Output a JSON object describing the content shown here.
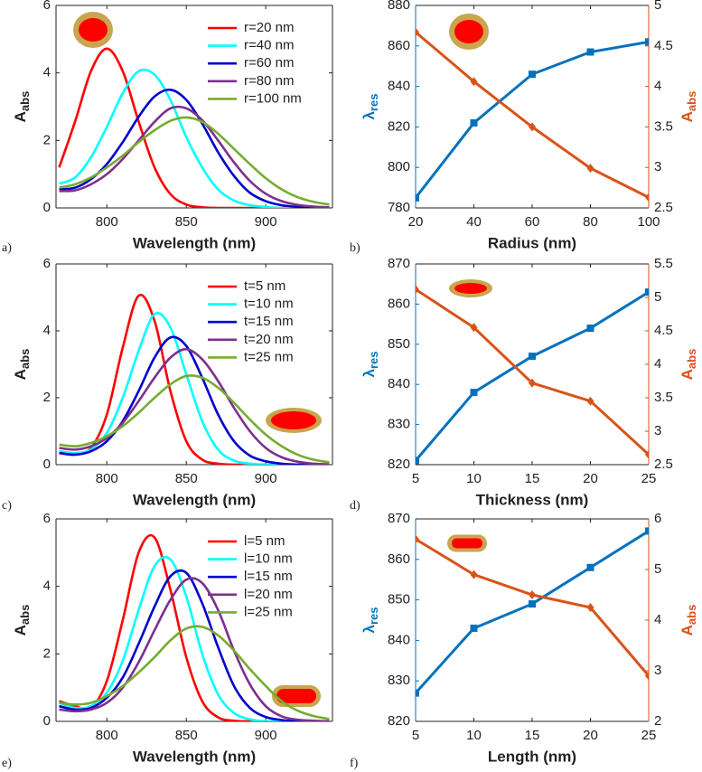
{
  "chart_data": [
    {
      "type": "line",
      "panel_label": "a)",
      "xlabel": "Wavelength (nm)",
      "ylabel": "A",
      "ylabel_sub": "abs",
      "x": [
        770,
        780,
        790,
        800,
        810,
        820,
        830,
        840,
        850,
        860,
        870,
        880,
        890,
        900,
        910,
        920,
        930,
        940
      ],
      "xlim": [
        768,
        942
      ],
      "xticks": [
        800,
        850,
        900
      ],
      "ylim": [
        0,
        6
      ],
      "yticks": [
        0,
        2,
        4,
        6
      ],
      "legend": "upper right",
      "inset": "sphere",
      "series": [
        {
          "name": "r=20 nm",
          "color": "#ff0000",
          "values": [
            1.2,
            2.56,
            4.05,
            4.72,
            4.05,
            2.56,
            1.2,
            0.41,
            0.1,
            0.02,
            0,
            0,
            0,
            0,
            0,
            0,
            0,
            0
          ]
        },
        {
          "name": "r=40 nm",
          "color": "#00ffff",
          "values": [
            0.72,
            0.9,
            1.5,
            2.4,
            3.4,
            4.05,
            3.95,
            3.2,
            2.1,
            1.2,
            0.55,
            0.22,
            0.08,
            0.03,
            0,
            0,
            0,
            0
          ]
        },
        {
          "name": "r=60 nm",
          "color": "#0000cc",
          "values": [
            0.55,
            0.6,
            0.85,
            1.3,
            1.95,
            2.7,
            3.3,
            3.5,
            3.2,
            2.5,
            1.65,
            0.95,
            0.45,
            0.2,
            0.08,
            0.03,
            0.01,
            0
          ]
        },
        {
          "name": "r=80 nm",
          "color": "#7e2f8e",
          "values": [
            0.5,
            0.52,
            0.7,
            1.0,
            1.45,
            2.0,
            2.55,
            2.95,
            2.95,
            2.6,
            2.0,
            1.35,
            0.8,
            0.42,
            0.2,
            0.09,
            0.04,
            0.02
          ]
        },
        {
          "name": "r=100 nm",
          "color": "#77ac30",
          "values": [
            0.6,
            0.7,
            0.9,
            1.2,
            1.55,
            1.95,
            2.3,
            2.58,
            2.68,
            2.55,
            2.2,
            1.75,
            1.3,
            0.88,
            0.55,
            0.32,
            0.18,
            0.1
          ]
        }
      ]
    },
    {
      "type": "line",
      "panel_label": "b)",
      "xlabel": "Radius (nm)",
      "ylabel": "λ",
      "ylabel_sub": "res",
      "y2label": "A",
      "y2label_sub": "abs",
      "x": [
        20,
        40,
        60,
        80,
        100
      ],
      "xlim": [
        20,
        100
      ],
      "xticks": [
        20,
        40,
        60,
        80,
        100
      ],
      "ylim": [
        780,
        880
      ],
      "yticks": [
        780,
        800,
        820,
        840,
        860,
        880
      ],
      "ycolor": "#0072bd",
      "y2lim": [
        2.5,
        5
      ],
      "y2ticks": [
        2.5,
        3,
        3.5,
        4,
        4.5,
        5
      ],
      "y2color": "#d95319",
      "inset": "sphere",
      "series": [
        {
          "color": "#0072bd",
          "marker": "square",
          "values": [
            785,
            822,
            846,
            857,
            862
          ]
        },
        {
          "color": "#d95319",
          "marker": "diamond",
          "axis": "y2",
          "values": [
            4.67,
            4.06,
            3.5,
            2.99,
            2.63
          ]
        }
      ]
    },
    {
      "type": "line",
      "panel_label": "c)",
      "xlabel": "Wavelength (nm)",
      "ylabel": "A",
      "ylabel_sub": "abs",
      "x": [
        770,
        780,
        790,
        800,
        810,
        820,
        830,
        840,
        850,
        860,
        870,
        880,
        890,
        900,
        910,
        920,
        930,
        940
      ],
      "xlim": [
        768,
        942
      ],
      "xticks": [
        800,
        850,
        900
      ],
      "ylim": [
        0,
        6
      ],
      "yticks": [
        0,
        2,
        4,
        6
      ],
      "legend": "upper right",
      "inset": "disk",
      "series": [
        {
          "name": "t=5 nm",
          "color": "#ff0000",
          "values": [
            0.35,
            0.3,
            0.5,
            1.5,
            3.5,
            5.05,
            4.3,
            2.2,
            0.7,
            0.15,
            0.03,
            0,
            0,
            0,
            0,
            0,
            0,
            0
          ]
        },
        {
          "name": "t=10 nm",
          "color": "#00ffff",
          "values": [
            0.4,
            0.35,
            0.45,
            0.95,
            2.0,
            3.4,
            4.5,
            4.1,
            2.7,
            1.3,
            0.45,
            0.12,
            0.03,
            0,
            0,
            0,
            0,
            0
          ]
        },
        {
          "name": "t=15 nm",
          "color": "#0000cc",
          "values": [
            0.35,
            0.3,
            0.4,
            0.7,
            1.3,
            2.2,
            3.2,
            3.8,
            3.55,
            2.6,
            1.5,
            0.7,
            0.27,
            0.1,
            0.03,
            0,
            0,
            0
          ]
        },
        {
          "name": "t=20 nm",
          "color": "#7e2f8e",
          "values": [
            0.5,
            0.45,
            0.55,
            0.8,
            1.25,
            1.9,
            2.6,
            3.2,
            3.45,
            3.15,
            2.5,
            1.7,
            1.0,
            0.5,
            0.22,
            0.09,
            0.03,
            0.01
          ]
        },
        {
          "name": "t=25 nm",
          "color": "#77ac30",
          "values": [
            0.6,
            0.55,
            0.65,
            0.85,
            1.15,
            1.55,
            2.0,
            2.4,
            2.65,
            2.6,
            2.3,
            1.85,
            1.35,
            0.9,
            0.55,
            0.3,
            0.15,
            0.07
          ]
        }
      ]
    },
    {
      "type": "line",
      "panel_label": "d)",
      "xlabel": "Thickness (nm)",
      "ylabel": "λ",
      "ylabel_sub": "res",
      "y2label": "A",
      "y2label_sub": "abs",
      "x": [
        5,
        10,
        15,
        20,
        25
      ],
      "xlim": [
        5,
        25
      ],
      "xticks": [
        5,
        10,
        15,
        20,
        25
      ],
      "ylim": [
        820,
        870
      ],
      "yticks": [
        820,
        830,
        840,
        850,
        860,
        870
      ],
      "ycolor": "#0072bd",
      "y2lim": [
        2.5,
        5.5
      ],
      "y2ticks": [
        2.5,
        3,
        3.5,
        4,
        4.5,
        5,
        5.5
      ],
      "y2color": "#d95319",
      "inset": "disk",
      "series": [
        {
          "color": "#0072bd",
          "marker": "square",
          "values": [
            821,
            838,
            847,
            854,
            863
          ]
        },
        {
          "color": "#d95319",
          "marker": "diamond",
          "axis": "y2",
          "values": [
            5.12,
            4.55,
            3.72,
            3.45,
            2.65
          ]
        }
      ]
    },
    {
      "type": "line",
      "panel_label": "e)",
      "xlabel": "Wavelength (nm)",
      "ylabel": "A",
      "ylabel_sub": "abs",
      "x": [
        770,
        780,
        790,
        800,
        810,
        820,
        830,
        840,
        850,
        860,
        870,
        880,
        890,
        900,
        910,
        920,
        930,
        940
      ],
      "xlim": [
        768,
        942
      ],
      "xticks": [
        800,
        850,
        900
      ],
      "ylim": [
        0,
        6
      ],
      "yticks": [
        0,
        2,
        4,
        6
      ],
      "legend": "upper right",
      "inset": "rod",
      "series": [
        {
          "name": "l=5 nm",
          "color": "#ff0000",
          "values": [
            0.6,
            0.45,
            0.4,
            1.2,
            3.0,
            5.0,
            5.45,
            3.9,
            1.9,
            0.6,
            0.12,
            0.02,
            0,
            0,
            0,
            0,
            0,
            0
          ]
        },
        {
          "name": "l=10 nm",
          "color": "#00ffff",
          "values": [
            0.55,
            0.4,
            0.45,
            0.85,
            1.8,
            3.3,
            4.6,
            4.8,
            3.7,
            2.0,
            0.8,
            0.25,
            0.06,
            0,
            0,
            0,
            0,
            0
          ]
        },
        {
          "name": "l=15 nm",
          "color": "#0000cc",
          "values": [
            0.45,
            0.35,
            0.4,
            0.7,
            1.3,
            2.3,
            3.4,
            4.3,
            4.4,
            3.5,
            2.2,
            1.05,
            0.4,
            0.13,
            0.04,
            0,
            0,
            0
          ]
        },
        {
          "name": "l=20 nm",
          "color": "#7e2f8e",
          "values": [
            0.35,
            0.3,
            0.35,
            0.55,
            1.0,
            1.75,
            2.7,
            3.6,
            4.2,
            4.1,
            3.3,
            2.1,
            1.1,
            0.45,
            0.15,
            0.05,
            0.02,
            0
          ]
        },
        {
          "name": "l=25 nm",
          "color": "#77ac30",
          "values": [
            0.55,
            0.5,
            0.55,
            0.75,
            1.05,
            1.45,
            1.9,
            2.4,
            2.75,
            2.8,
            2.55,
            2.1,
            1.55,
            1.05,
            0.6,
            0.32,
            0.16,
            0.07
          ]
        }
      ]
    },
    {
      "type": "line",
      "panel_label": "f)",
      "xlabel": "Length (nm)",
      "ylabel": "λ",
      "ylabel_sub": "res",
      "y2label": "A",
      "y2label_sub": "abs",
      "x": [
        5,
        10,
        15,
        20,
        25
      ],
      "xlim": [
        5,
        25
      ],
      "xticks": [
        5,
        10,
        15,
        20,
        25
      ],
      "ylim": [
        820,
        870
      ],
      "yticks": [
        820,
        830,
        840,
        850,
        860,
        870
      ],
      "ycolor": "#0072bd",
      "y2lim": [
        2,
        6
      ],
      "y2ticks": [
        2,
        3,
        4,
        5,
        6
      ],
      "y2color": "#d95319",
      "inset": "rod",
      "series": [
        {
          "color": "#0072bd",
          "marker": "square",
          "values": [
            827,
            843,
            849,
            858,
            867
          ]
        },
        {
          "color": "#d95319",
          "marker": "diamond",
          "axis": "y2",
          "values": [
            5.6,
            4.9,
            4.5,
            4.25,
            2.9
          ]
        }
      ]
    }
  ]
}
